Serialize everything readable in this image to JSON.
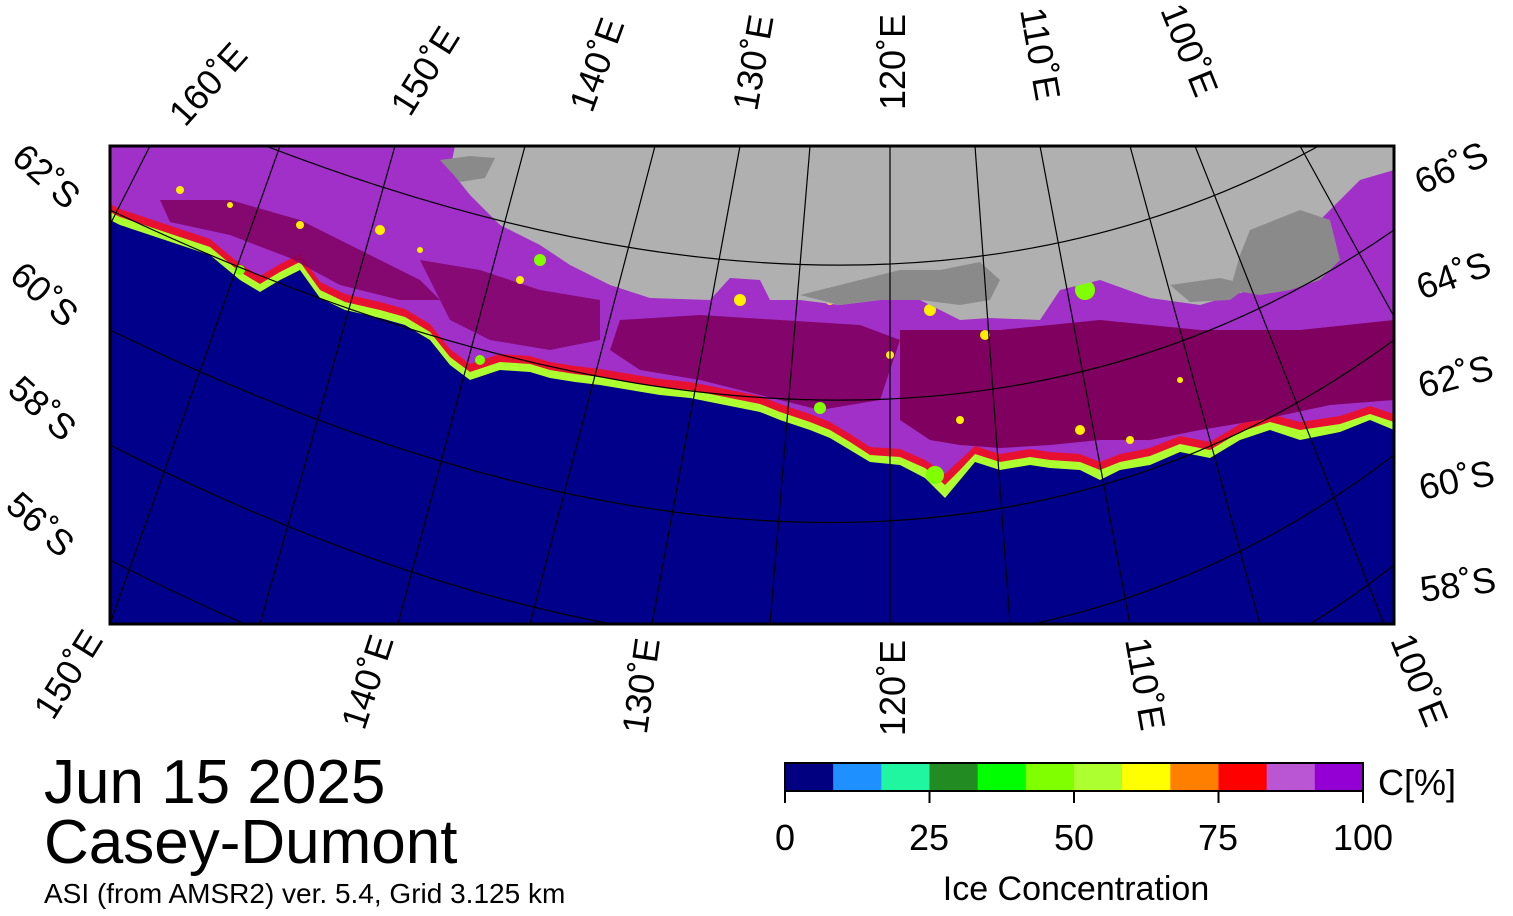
{
  "title": {
    "date": "Jun 15 2025",
    "region": "Casey-Dumont",
    "product": "ASI (from AMSR2) ver. 5.4,  Grid 3.125 km"
  },
  "map": {
    "colors": {
      "ocean": "#00008b",
      "land": "#b0b0b0",
      "ice_shelf": "#8a8a8a",
      "consolidated_ice": "#800060",
      "grid": "#000000"
    },
    "top_longitudes": [
      "160˚E",
      "150˚E",
      "140˚E",
      "130˚E",
      "120˚E",
      "110˚E",
      "100˚E"
    ],
    "bottom_longitudes": [
      "150˚E",
      "140˚E",
      "130˚E",
      "120˚E",
      "110˚E",
      "100˚E"
    ],
    "left_latitudes": [
      "62˚S",
      "60˚S",
      "58˚S",
      "56˚S"
    ],
    "right_latitudes": [
      "66˚S",
      "64˚S",
      "62˚S",
      "60˚S",
      "58˚S"
    ]
  },
  "colorbar": {
    "label": "Ice Concentration",
    "unit": "C[%]",
    "ticks": [
      "0",
      "25",
      "50",
      "75",
      "100"
    ],
    "bins": [
      "#000080",
      "#1e90ff",
      "#20f5a0",
      "#228b22",
      "#00ff00",
      "#7fff00",
      "#adff2f",
      "#ffff00",
      "#ff8000",
      "#ff0000",
      "#ba55d3",
      "#9400d3"
    ]
  }
}
